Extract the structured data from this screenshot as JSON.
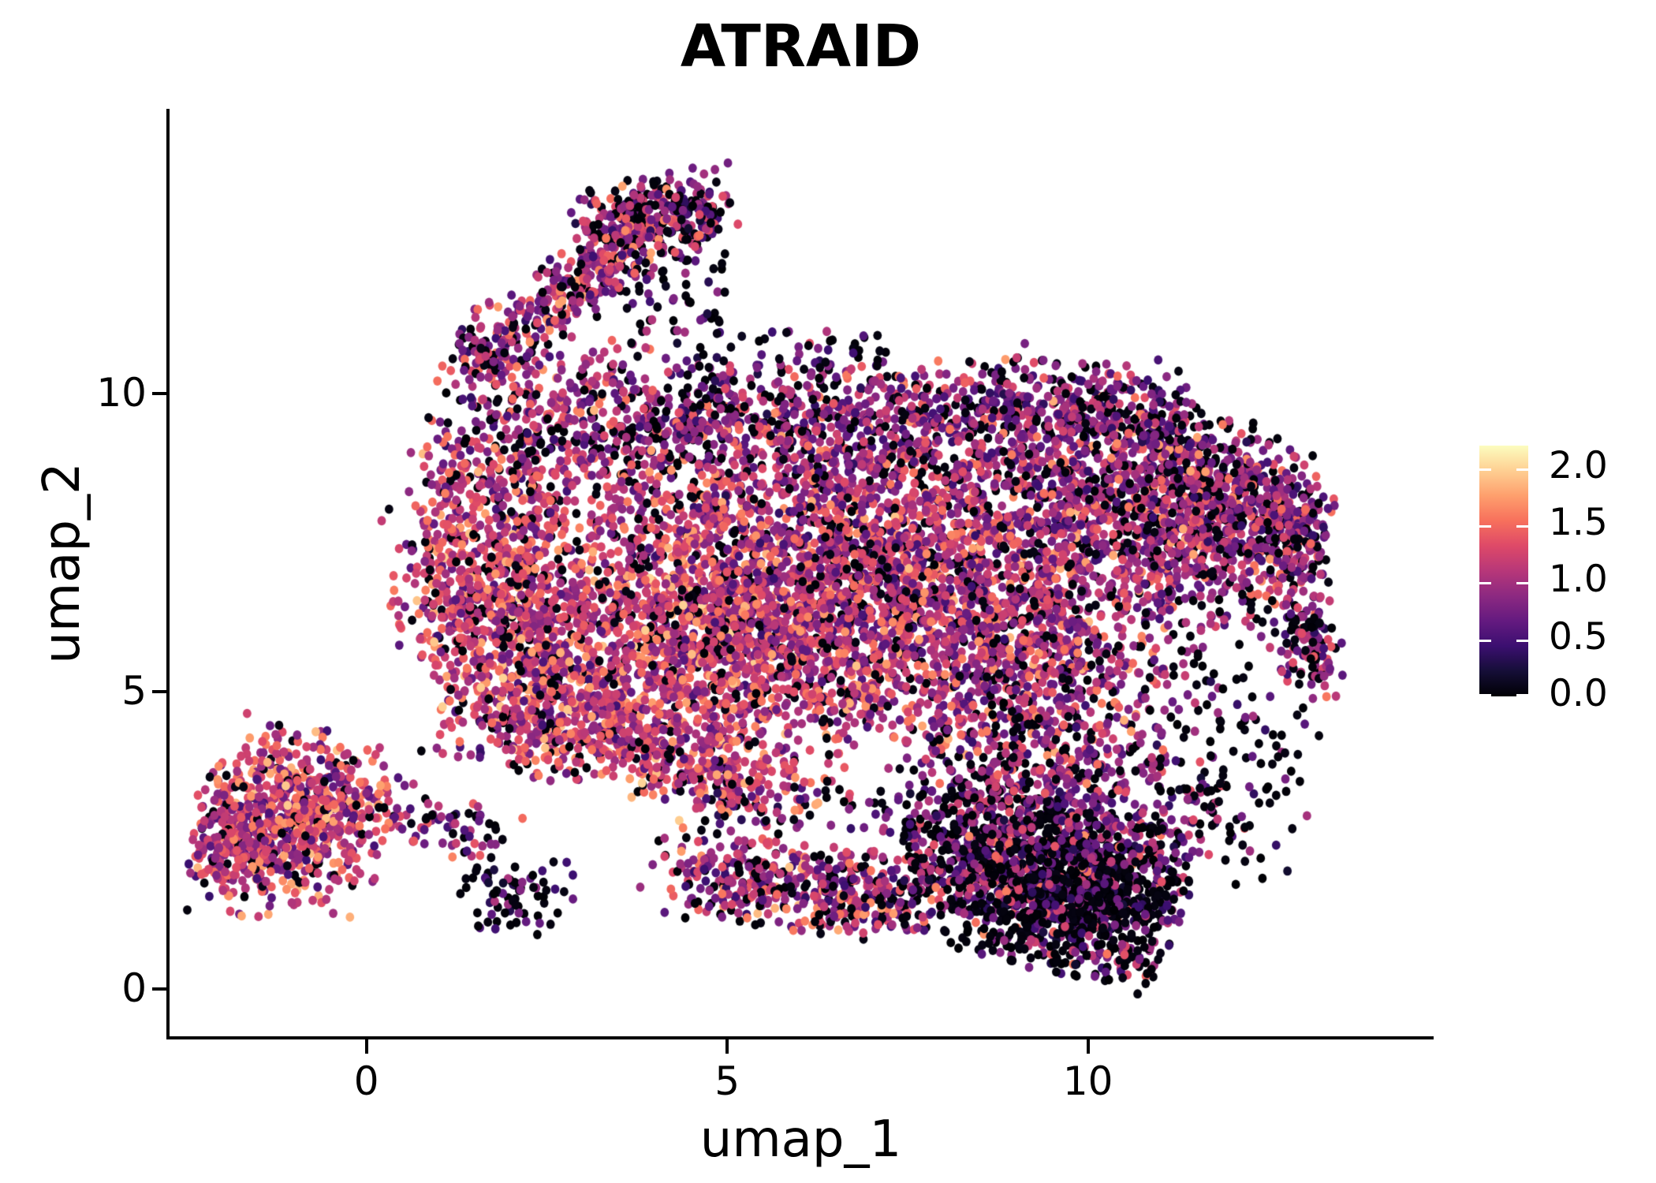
{
  "chart_data": {
    "type": "scatter",
    "title": "ATRAID",
    "xlabel": "umap_1",
    "ylabel": "umap_2",
    "xlim": [
      -2.75,
      14.79
    ],
    "ylim": [
      -0.82,
      14.78
    ],
    "xticks": [
      "0",
      "5",
      "10"
    ],
    "xtick_values": [
      0,
      5,
      10
    ],
    "yticks": [
      "0",
      "5",
      "10"
    ],
    "ytick_values": [
      0,
      5,
      10
    ],
    "grid": false,
    "background_color": "#ffffff",
    "axis_color": "#000000",
    "point_radius_px": [
      5.4,
      5.9
    ],
    "colorbar": {
      "vmin": 0.0,
      "vmax": 2.2,
      "tick_values": [
        0.0,
        0.5,
        1.0,
        1.5,
        2.0
      ],
      "tick_labels": [
        "0.0",
        "0.5",
        "1.0",
        "1.5",
        "2.0"
      ]
    },
    "colormap": {
      "name": "magma",
      "stops": [
        [
          0.0,
          "#000004"
        ],
        [
          0.1,
          "#150E37"
        ],
        [
          0.2,
          "#3B0F70"
        ],
        [
          0.3,
          "#641A80"
        ],
        [
          0.4,
          "#8C2981"
        ],
        [
          0.5,
          "#B73779"
        ],
        [
          0.6,
          "#DE4968"
        ],
        [
          0.7,
          "#F7705C"
        ],
        [
          0.8,
          "#FE9F6D"
        ],
        [
          0.9,
          "#FECF92"
        ],
        [
          1.0,
          "#FCFDBF"
        ]
      ]
    },
    "seed": 42,
    "clusters": [
      {
        "name": "bottomleft-core",
        "shape": "gauss",
        "cx": -0.95,
        "cy": 2.9,
        "sx": 0.65,
        "sy": 0.75,
        "rot": -15,
        "n": 660,
        "zero_frac": 0.09,
        "v_min": 0.35,
        "v_max": 2.05,
        "v_pow": 1.0,
        "gmax": 2.0
      },
      {
        "name": "bottomleft-west",
        "shape": "gauss",
        "cx": -1.75,
        "cy": 2.45,
        "sx": 0.35,
        "sy": 0.6,
        "rot": 0,
        "n": 170,
        "zero_frac": 0.12,
        "v_min": 0.35,
        "v_max": 2.0,
        "v_pow": 1.05
      },
      {
        "name": "bottomleft-tail",
        "shape": "line",
        "x1": 0.15,
        "y1": 3.0,
        "x2": 1.75,
        "y2": 2.6,
        "w": 0.26,
        "n": 75,
        "zero_frac": 0.22,
        "v_min": 0.25,
        "v_max": 1.8,
        "v_pow": 1.2
      },
      {
        "name": "dark-clump-low",
        "shape": "gauss",
        "cx": 2.05,
        "cy": 1.55,
        "sx": 0.42,
        "sy": 0.35,
        "rot": 0,
        "n": 75,
        "zero_frac": 0.5,
        "v_min": 0.1,
        "v_max": 1.4,
        "v_pow": 1.4
      },
      {
        "name": "arm-band",
        "shape": "line",
        "x1": 1.5,
        "y1": 10.35,
        "x2": 3.8,
        "y2": 12.8,
        "w": 0.3,
        "n": 410,
        "zero_frac": 0.2,
        "v_min": 0.3,
        "v_max": 1.95,
        "v_pow": 1.15
      },
      {
        "name": "arm-top",
        "shape": "gauss",
        "cx": 4.0,
        "cy": 12.95,
        "sx": 0.55,
        "sy": 0.35,
        "rot": 10,
        "n": 250,
        "zero_frac": 0.3,
        "v_min": 0.25,
        "v_max": 1.9,
        "v_pow": 1.2
      },
      {
        "name": "arm-top-dark-pocket",
        "shape": "gauss",
        "cx": 4.45,
        "cy": 13.1,
        "sx": 0.25,
        "sy": 0.18,
        "rot": 0,
        "n": 40,
        "zero_frac": 0.65,
        "v_min": 0.1,
        "v_max": 1.2,
        "v_pow": 1.4
      },
      {
        "name": "arm-right-scatter",
        "shape": "rect",
        "x1": 3.4,
        "y1": 11.0,
        "x2": 5.0,
        "y2": 12.5,
        "n": 60,
        "zero_frac": 0.6,
        "v_min": 0.1,
        "v_max": 1.4,
        "v_pow": 1.4
      },
      {
        "name": "upper-bulge",
        "shape": "gauss",
        "cx": 2.75,
        "cy": 9.55,
        "sx": 0.85,
        "sy": 0.6,
        "rot": 18,
        "n": 330,
        "zero_frac": 0.24,
        "v_min": 0.3,
        "v_max": 1.9,
        "v_pow": 1.15
      },
      {
        "name": "top-scatter",
        "shape": "rect",
        "x1": 4.3,
        "y1": 10.2,
        "x2": 7.2,
        "y2": 11.05,
        "n": 65,
        "zero_frac": 0.55,
        "v_min": 0.1,
        "v_max": 1.4,
        "v_pow": 1.4
      },
      {
        "name": "left-lobe",
        "shape": "gauss",
        "cx": 1.75,
        "cy": 6.6,
        "sx": 0.68,
        "sy": 1.3,
        "rot": 10,
        "n": 880,
        "zero_frac": 0.12,
        "v_min": 0.35,
        "v_max": 2.05,
        "v_pow": 1.0
      },
      {
        "name": "main-hot-core",
        "shape": "gauss",
        "cx": 4.55,
        "cy": 6.0,
        "sx": 1.35,
        "sy": 1.15,
        "rot": -12,
        "n": 1750,
        "zero_frac": 0.11,
        "v_min": 0.35,
        "v_max": 2.05,
        "v_pow": 1.0,
        "gmax": 2.0
      },
      {
        "name": "main-mid",
        "shape": "gauss",
        "cx": 7.2,
        "cy": 6.7,
        "sx": 1.4,
        "sy": 1.25,
        "rot": -8,
        "n": 1800,
        "zero_frac": 0.15,
        "v_min": 0.3,
        "v_max": 1.95,
        "v_pow": 1.1,
        "gmax": 2.0
      },
      {
        "name": "mid-right",
        "shape": "gauss",
        "cx": 9.4,
        "cy": 5.6,
        "sx": 1.0,
        "sy": 1.05,
        "rot": -15,
        "n": 700,
        "zero_frac": 0.18,
        "v_min": 0.3,
        "v_max": 1.95,
        "v_pow": 1.15
      },
      {
        "name": "main-upper-band",
        "shape": "gauss",
        "cx": 5.7,
        "cy": 8.55,
        "sx": 2.3,
        "sy": 0.58,
        "rot": 0,
        "n": 580,
        "zero_frac": 0.22,
        "v_min": 0.3,
        "v_max": 1.9,
        "v_pow": 1.15
      },
      {
        "name": "top-band",
        "shape": "line",
        "x1": 3.9,
        "y1": 9.6,
        "x2": 10.0,
        "y2": 9.8,
        "w": 0.42,
        "n": 700,
        "zero_frac": 0.26,
        "v_min": 0.25,
        "v_max": 1.8,
        "v_pow": 1.3
      },
      {
        "name": "right-mass",
        "shape": "gauss",
        "cx": 10.5,
        "cy": 8.3,
        "sx": 1.25,
        "sy": 0.85,
        "rot": -25,
        "n": 950,
        "zero_frac": 0.21,
        "v_min": 0.3,
        "v_max": 1.9,
        "v_pow": 1.2
      },
      {
        "name": "right-mass-east",
        "shape": "gauss",
        "cx": 11.7,
        "cy": 7.7,
        "sx": 0.75,
        "sy": 0.65,
        "rot": -30,
        "n": 360,
        "zero_frac": 0.19,
        "v_min": 0.3,
        "v_max": 1.9,
        "v_pow": 1.2
      },
      {
        "name": "topright-edge",
        "shape": "line",
        "x1": 10.2,
        "y1": 10.0,
        "x2": 12.85,
        "y2": 7.9,
        "w": 0.38,
        "n": 340,
        "zero_frac": 0.3,
        "v_min": 0.25,
        "v_max": 1.75,
        "v_pow": 1.3
      },
      {
        "name": "right-arc",
        "shape": "line",
        "x1": 12.75,
        "y1": 8.6,
        "x2": 13.1,
        "y2": 5.1,
        "w": 0.25,
        "n": 260,
        "zero_frac": 0.28,
        "v_min": 0.25,
        "v_max": 1.8,
        "v_pow": 1.3
      },
      {
        "name": "right-hole-sparse",
        "shape": "gauss",
        "cx": 11.55,
        "cy": 5.3,
        "sx": 0.75,
        "sy": 0.85,
        "rot": 0,
        "n": 70,
        "zero_frac": 0.62,
        "v_min": 0.1,
        "v_max": 1.45,
        "v_pow": 1.4
      },
      {
        "name": "bottomright-right-scatter",
        "shape": "gauss",
        "cx": 12.1,
        "cy": 3.2,
        "sx": 0.55,
        "sy": 0.75,
        "rot": 0,
        "n": 75,
        "zero_frac": 0.6,
        "v_min": 0.1,
        "v_max": 1.45,
        "v_pow": 1.4
      },
      {
        "name": "bottomright-dark",
        "shape": "gauss",
        "cx": 9.35,
        "cy": 1.8,
        "sx": 1.08,
        "sy": 0.75,
        "rot": -18,
        "n": 1300,
        "zero_frac": 0.55,
        "v_min": 0.12,
        "v_max": 1.75,
        "v_pow": 1.3,
        "gmax": 1.9
      },
      {
        "name": "bottomright-dark-core",
        "shape": "gauss",
        "cx": 10.0,
        "cy": 1.6,
        "sx": 0.6,
        "sy": 0.48,
        "rot": -10,
        "n": 300,
        "zero_frac": 0.62,
        "v_min": 0.1,
        "v_max": 1.6,
        "v_pow": 1.4
      },
      {
        "name": "bottomright-upper",
        "shape": "gauss",
        "cx": 9.55,
        "cy": 3.25,
        "sx": 1.15,
        "sy": 0.58,
        "rot": -10,
        "n": 460,
        "zero_frac": 0.32,
        "v_min": 0.25,
        "v_max": 1.8,
        "v_pow": 1.25
      },
      {
        "name": "bottom-band",
        "shape": "line",
        "x1": 4.5,
        "y1": 1.95,
        "x2": 7.7,
        "y2": 1.5,
        "w": 0.38,
        "n": 470,
        "zero_frac": 0.22,
        "v_min": 0.3,
        "v_max": 1.95,
        "v_pow": 1.1
      },
      {
        "name": "band-gap-scatter",
        "shape": "rect",
        "x1": 4.5,
        "y1": 2.6,
        "x2": 7.9,
        "y2": 3.5,
        "n": 60,
        "zero_frac": 0.45,
        "v_min": 0.15,
        "v_max": 1.6,
        "v_pow": 1.35
      },
      {
        "name": "main-bottom-edge",
        "shape": "line",
        "x1": 3.0,
        "y1": 4.3,
        "x2": 5.7,
        "y2": 3.3,
        "w": 0.4,
        "n": 350,
        "zero_frac": 0.12,
        "v_min": 0.35,
        "v_max": 2.05,
        "v_pow": 1.0
      },
      {
        "name": "left-corner",
        "shape": "gauss",
        "cx": 2.5,
        "cy": 4.5,
        "sx": 0.6,
        "sy": 0.5,
        "rot": 0,
        "n": 240,
        "zero_frac": 0.12,
        "v_min": 0.35,
        "v_max": 2.0,
        "v_pow": 1.0
      }
    ]
  }
}
